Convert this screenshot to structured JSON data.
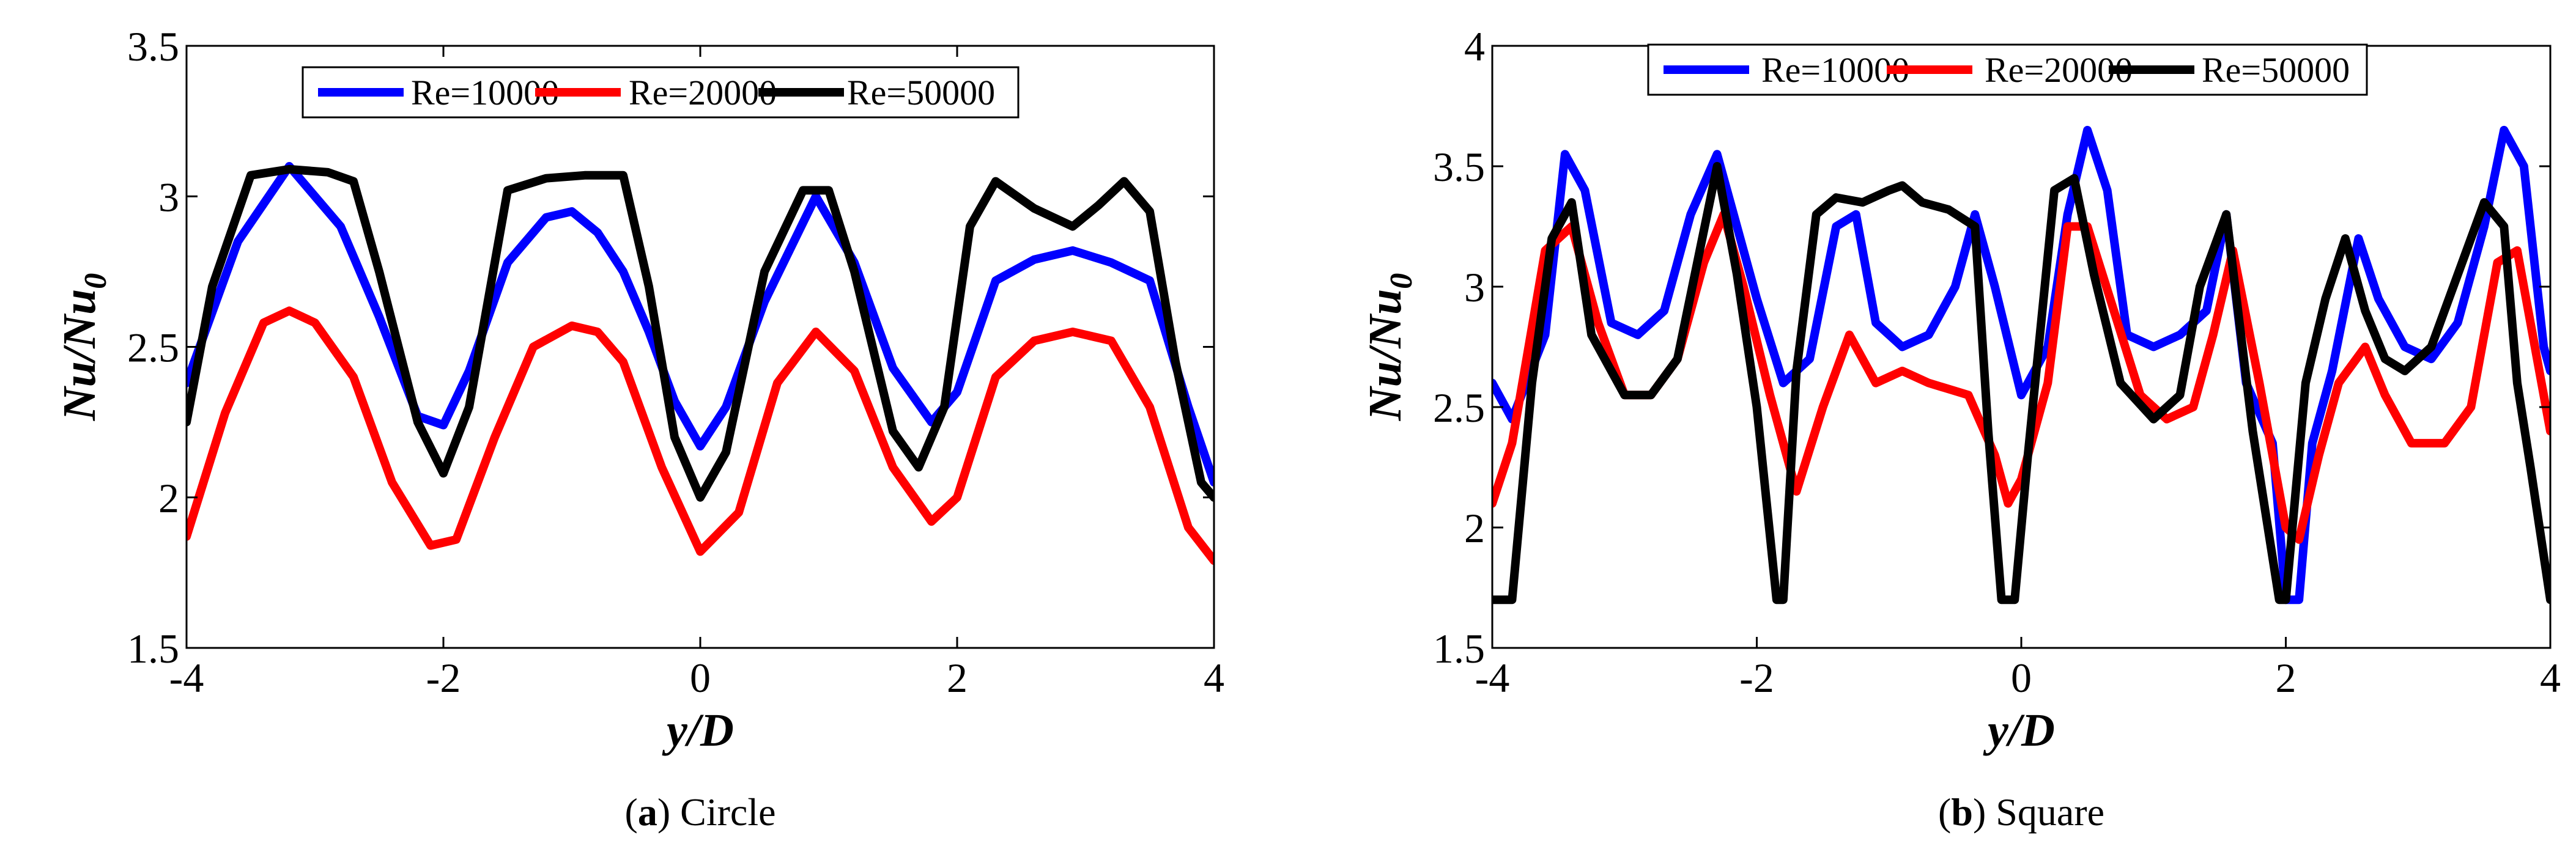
{
  "legend_placement": "top-center",
  "chart_data": [
    {
      "type": "line",
      "panel_label": "a",
      "caption": "Circle",
      "xlabel": "y/D",
      "ylabel_main": "Nu/Nu",
      "ylabel_sub": "0",
      "xlim": [
        -4,
        4
      ],
      "ylim": [
        1.5,
        3.5
      ],
      "xticks": [
        -4,
        -2,
        0,
        2,
        4
      ],
      "yticks": [
        1.5,
        2,
        2.5,
        3,
        3.5
      ],
      "xticklabels": [
        "-4",
        "-2",
        "0",
        "2",
        "4"
      ],
      "yticklabels": [
        "1.5",
        "2",
        "2.5",
        "3",
        "3.5"
      ],
      "series": [
        {
          "name": "Re=10000",
          "color": "#0000ff",
          "x": [
            -4.0,
            -3.6,
            -3.2,
            -2.8,
            -2.5,
            -2.2,
            -2.0,
            -1.8,
            -1.5,
            -1.2,
            -1.0,
            -0.8,
            -0.6,
            -0.4,
            -0.2,
            0.0,
            0.2,
            0.5,
            0.9,
            1.2,
            1.5,
            1.8,
            2.0,
            2.3,
            2.6,
            2.9,
            3.2,
            3.5,
            3.8,
            4.0
          ],
          "y": [
            2.38,
            2.85,
            3.1,
            2.9,
            2.6,
            2.27,
            2.24,
            2.42,
            2.78,
            2.93,
            2.95,
            2.88,
            2.75,
            2.55,
            2.32,
            2.17,
            2.3,
            2.65,
            3.0,
            2.78,
            2.43,
            2.25,
            2.35,
            2.72,
            2.79,
            2.82,
            2.78,
            2.72,
            2.3,
            2.05
          ]
        },
        {
          "name": "Re=20000",
          "color": "#ff0000",
          "x": [
            -4.0,
            -3.7,
            -3.4,
            -3.2,
            -3.0,
            -2.7,
            -2.4,
            -2.1,
            -1.9,
            -1.6,
            -1.3,
            -1.0,
            -0.8,
            -0.6,
            -0.3,
            0.0,
            0.3,
            0.6,
            0.9,
            1.2,
            1.5,
            1.8,
            2.0,
            2.3,
            2.6,
            2.9,
            3.2,
            3.5,
            3.8,
            4.0
          ],
          "y": [
            1.87,
            2.28,
            2.58,
            2.62,
            2.58,
            2.4,
            2.05,
            1.84,
            1.86,
            2.2,
            2.5,
            2.57,
            2.55,
            2.45,
            2.1,
            1.82,
            1.95,
            2.38,
            2.55,
            2.42,
            2.1,
            1.92,
            2.0,
            2.4,
            2.52,
            2.55,
            2.52,
            2.3,
            1.9,
            1.79
          ]
        },
        {
          "name": "Re=50000",
          "color": "#000000",
          "x": [
            -4.0,
            -3.8,
            -3.5,
            -3.2,
            -2.9,
            -2.7,
            -2.5,
            -2.2,
            -2.0,
            -1.8,
            -1.5,
            -1.2,
            -0.9,
            -0.6,
            -0.4,
            -0.2,
            0.0,
            0.2,
            0.5,
            0.8,
            1.0,
            1.2,
            1.5,
            1.7,
            1.9,
            2.1,
            2.3,
            2.6,
            2.9,
            3.1,
            3.3,
            3.5,
            3.7,
            3.9,
            4.0
          ],
          "y": [
            2.25,
            2.7,
            3.07,
            3.09,
            3.08,
            3.05,
            2.75,
            2.25,
            2.08,
            2.3,
            3.02,
            3.06,
            3.07,
            3.07,
            2.7,
            2.2,
            2.0,
            2.15,
            2.75,
            3.02,
            3.02,
            2.75,
            2.22,
            2.1,
            2.3,
            2.9,
            3.05,
            2.96,
            2.9,
            2.97,
            3.05,
            2.95,
            2.45,
            2.05,
            2.0
          ]
        }
      ]
    },
    {
      "type": "line",
      "panel_label": "b",
      "caption": "Square",
      "xlabel": "y/D",
      "ylabel_main": "Nu/Nu",
      "ylabel_sub": "0",
      "xlim": [
        -4,
        4
      ],
      "ylim": [
        1.5,
        4
      ],
      "xticks": [
        -4,
        -2,
        0,
        2,
        4
      ],
      "yticks": [
        1.5,
        2,
        2.5,
        3,
        3.5,
        4
      ],
      "xticklabels": [
        "-4",
        "-2",
        "0",
        "2",
        "4"
      ],
      "yticklabels": [
        "1.5",
        "2",
        "2.5",
        "3",
        "3.5",
        "4"
      ],
      "series": [
        {
          "name": "Re=10000",
          "color": "#0000ff",
          "x": [
            -4.0,
            -3.85,
            -3.6,
            -3.45,
            -3.3,
            -3.1,
            -2.9,
            -2.7,
            -2.5,
            -2.3,
            -2.15,
            -2.0,
            -1.8,
            -1.6,
            -1.4,
            -1.25,
            -1.1,
            -0.9,
            -0.7,
            -0.5,
            -0.35,
            -0.2,
            0.0,
            0.2,
            0.35,
            0.5,
            0.65,
            0.8,
            1.0,
            1.2,
            1.4,
            1.55,
            1.7,
            1.9,
            2.0,
            2.1,
            2.2,
            2.35,
            2.55,
            2.7,
            2.9,
            3.1,
            3.3,
            3.5,
            3.65,
            3.8,
            3.95,
            4.0
          ],
          "y": [
            2.6,
            2.45,
            2.8,
            3.55,
            3.4,
            2.85,
            2.8,
            2.9,
            3.3,
            3.55,
            3.25,
            2.95,
            2.6,
            2.7,
            3.25,
            3.3,
            2.85,
            2.75,
            2.8,
            3.0,
            3.3,
            3.0,
            2.55,
            2.75,
            3.3,
            3.65,
            3.4,
            2.8,
            2.75,
            2.8,
            2.9,
            3.3,
            2.6,
            2.35,
            1.7,
            1.7,
            2.35,
            2.65,
            3.2,
            2.95,
            2.75,
            2.7,
            2.85,
            3.25,
            3.65,
            3.5,
            2.75,
            2.65
          ]
        },
        {
          "name": "Re=20000",
          "color": "#ff0000",
          "x": [
            -4.0,
            -3.85,
            -3.6,
            -3.4,
            -3.2,
            -3.0,
            -2.8,
            -2.6,
            -2.4,
            -2.25,
            -2.1,
            -1.9,
            -1.7,
            -1.5,
            -1.3,
            -1.1,
            -0.9,
            -0.7,
            -0.4,
            -0.2,
            -0.1,
            0.0,
            0.2,
            0.35,
            0.5,
            0.7,
            0.9,
            1.1,
            1.3,
            1.45,
            1.6,
            1.8,
            2.0,
            2.1,
            2.25,
            2.4,
            2.6,
            2.75,
            2.95,
            3.2,
            3.4,
            3.6,
            3.75,
            3.9,
            4.0
          ],
          "y": [
            2.1,
            2.35,
            3.15,
            3.25,
            2.85,
            2.55,
            2.55,
            2.7,
            3.1,
            3.3,
            3.0,
            2.55,
            2.15,
            2.5,
            2.8,
            2.6,
            2.65,
            2.6,
            2.55,
            2.3,
            2.1,
            2.2,
            2.6,
            3.25,
            3.25,
            2.9,
            2.55,
            2.45,
            2.5,
            2.8,
            3.15,
            2.6,
            2.0,
            1.95,
            2.3,
            2.6,
            2.75,
            2.55,
            2.35,
            2.35,
            2.5,
            3.1,
            3.15,
            2.7,
            2.4
          ]
        },
        {
          "name": "Re=50000",
          "color": "#000000",
          "x": [
            -4.0,
            -3.85,
            -3.7,
            -3.55,
            -3.4,
            -3.25,
            -3.0,
            -2.8,
            -2.6,
            -2.45,
            -2.3,
            -2.15,
            -2.0,
            -1.85,
            -1.8,
            -1.7,
            -1.55,
            -1.4,
            -1.2,
            -1.0,
            -0.9,
            -0.75,
            -0.55,
            -0.35,
            -0.25,
            -0.15,
            -0.05,
            0.05,
            0.25,
            0.4,
            0.55,
            0.75,
            1.0,
            1.2,
            1.35,
            1.55,
            1.75,
            1.95,
            2.0,
            2.15,
            2.3,
            2.45,
            2.6,
            2.75,
            2.9,
            3.1,
            3.3,
            3.5,
            3.65,
            3.75,
            3.85,
            4.0
          ],
          "y": [
            1.7,
            1.7,
            2.6,
            3.2,
            3.35,
            2.8,
            2.55,
            2.55,
            2.7,
            3.1,
            3.5,
            3.05,
            2.5,
            1.7,
            1.7,
            2.65,
            3.3,
            3.37,
            3.35,
            3.4,
            3.42,
            3.35,
            3.32,
            3.25,
            2.4,
            1.7,
            1.7,
            2.3,
            3.4,
            3.45,
            3.05,
            2.6,
            2.45,
            2.55,
            3.0,
            3.3,
            2.4,
            1.7,
            1.7,
            2.6,
            2.95,
            3.2,
            2.9,
            2.7,
            2.65,
            2.75,
            3.05,
            3.35,
            3.25,
            2.6,
            2.25,
            1.7
          ]
        }
      ]
    }
  ]
}
